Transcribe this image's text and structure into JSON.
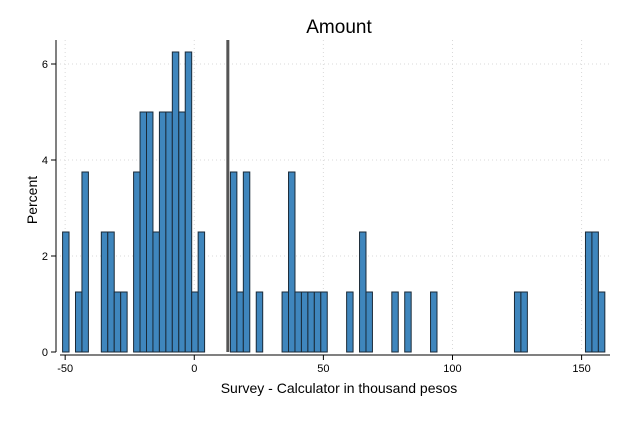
{
  "chart_data": {
    "type": "bar",
    "title": "Amount",
    "xlabel": "Survey - Calculator in thousand pesos",
    "ylabel": "Percent",
    "xlim": [
      -52,
      161
    ],
    "ylim": [
      0,
      6.5
    ],
    "x_ticks": [
      -50,
      0,
      50,
      100,
      150
    ],
    "x_tick_labels": [
      "-50",
      "0",
      "50",
      "100",
      "150"
    ],
    "y_ticks": [
      0,
      2,
      4,
      6
    ],
    "y_tick_labels": [
      "0",
      "2",
      "4",
      "6"
    ],
    "bin_width": 2.5,
    "reference_line_x": 13,
    "grid": true,
    "colors": {
      "bar_fill": "#3f86bd",
      "bar_edge": "#1a2a38",
      "reference_line": "#555555"
    },
    "bins": [
      {
        "start": -51,
        "value": 2.5
      },
      {
        "start": -46,
        "value": 1.25
      },
      {
        "start": -43.5,
        "value": 3.75
      },
      {
        "start": -36,
        "value": 2.5
      },
      {
        "start": -33.5,
        "value": 2.5
      },
      {
        "start": -31,
        "value": 1.25
      },
      {
        "start": -28.5,
        "value": 1.25
      },
      {
        "start": -23.5,
        "value": 3.75
      },
      {
        "start": -21,
        "value": 5.0
      },
      {
        "start": -18.5,
        "value": 5.0
      },
      {
        "start": -16,
        "value": 2.5
      },
      {
        "start": -13.5,
        "value": 5.0
      },
      {
        "start": -11,
        "value": 5.0
      },
      {
        "start": -8.5,
        "value": 6.25
      },
      {
        "start": -6,
        "value": 5.0
      },
      {
        "start": -3.5,
        "value": 6.25
      },
      {
        "start": -1,
        "value": 1.25
      },
      {
        "start": 1.5,
        "value": 2.5
      },
      {
        "start": 14,
        "value": 3.75
      },
      {
        "start": 16.5,
        "value": 1.25
      },
      {
        "start": 19,
        "value": 3.75
      },
      {
        "start": 24,
        "value": 1.25
      },
      {
        "start": 34,
        "value": 1.25
      },
      {
        "start": 36.5,
        "value": 3.75
      },
      {
        "start": 39,
        "value": 1.25
      },
      {
        "start": 41.5,
        "value": 1.25
      },
      {
        "start": 44,
        "value": 1.25
      },
      {
        "start": 46.5,
        "value": 1.25
      },
      {
        "start": 49,
        "value": 1.25
      },
      {
        "start": 59,
        "value": 1.25
      },
      {
        "start": 64,
        "value": 2.5
      },
      {
        "start": 66.5,
        "value": 1.25
      },
      {
        "start": 76.5,
        "value": 1.25
      },
      {
        "start": 81.5,
        "value": 1.25
      },
      {
        "start": 91.5,
        "value": 1.25
      },
      {
        "start": 124,
        "value": 1.25
      },
      {
        "start": 126.5,
        "value": 1.25
      },
      {
        "start": 151.5,
        "value": 2.5
      },
      {
        "start": 154,
        "value": 2.5
      },
      {
        "start": 156.5,
        "value": 1.25
      }
    ]
  }
}
